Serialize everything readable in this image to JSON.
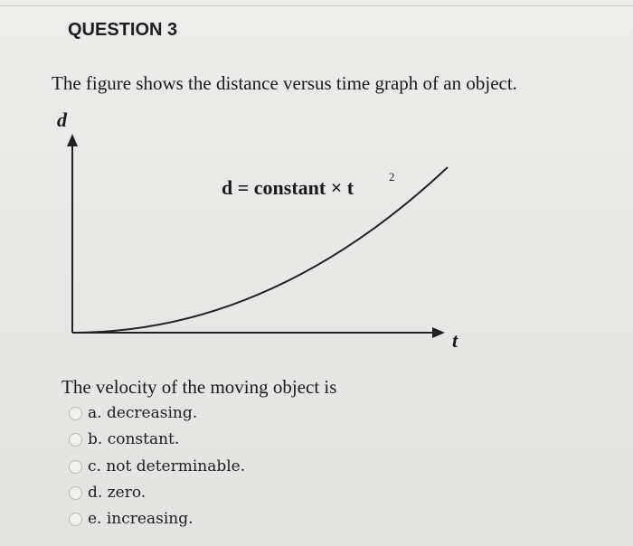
{
  "question": {
    "title": "QUESTION 3",
    "prompt": "The figure shows the distance versus time graph of an object.",
    "stem": "The velocity of the moving object is",
    "options": [
      "a. decreasing.",
      "b. constant.",
      "c. not determinable.",
      "d. zero.",
      "e. increasing."
    ]
  },
  "figure": {
    "y_label": "d",
    "x_label": "t",
    "equation": "d = constant × t",
    "equation_exponent": "2"
  }
}
